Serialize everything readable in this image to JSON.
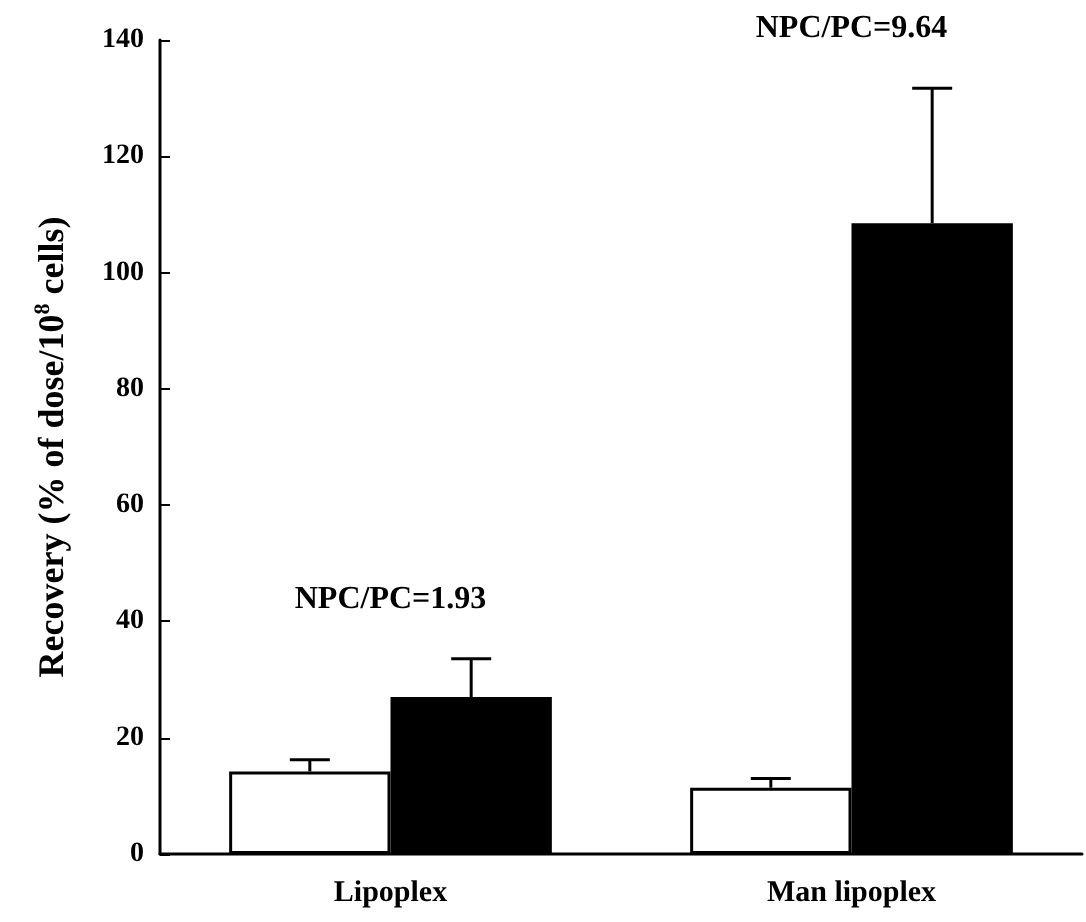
{
  "chart_data": {
    "type": "bar",
    "categories": [
      "Lipoplex",
      "Man lipoplex"
    ],
    "ylabel": "Recovery (% of dose/10$^{8}$ cells)",
    "series": [
      {
        "color": "#ffffff",
        "values": [
          14.2,
          11.4
        ],
        "errors": [
          [
            14.2,
            16.2
          ],
          [
            11.4,
            13.0
          ]
        ]
      },
      {
        "color": "#000000",
        "values": [
          27.0,
          108.5
        ],
        "errors": [
          [
            27.0,
            33.6
          ],
          [
            108.5,
            131.7
          ]
        ]
      }
    ],
    "annotations": [
      "NPC/PC=1.93",
      "NPC/PC=9.64"
    ],
    "ylim": [
      0,
      140
    ],
    "yticks": [
      0,
      20,
      40,
      60,
      80,
      100,
      120,
      140
    ],
    "grid": false
  }
}
